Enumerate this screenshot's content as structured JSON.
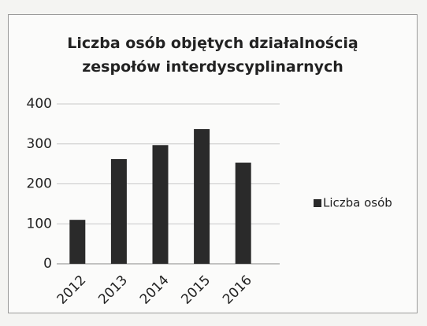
{
  "chart_data": {
    "type": "bar",
    "title": "Liczba osób objętych działalnością zespołów interdyscyplinarnych",
    "categories": [
      "2012",
      "2013",
      "2014",
      "2015",
      "2016"
    ],
    "series": [
      {
        "name": "Liczba osób",
        "color": "#2a2a2a",
        "values": [
          110,
          262,
          297,
          337,
          253
        ]
      }
    ],
    "ylim": [
      0,
      400
    ],
    "yticks": [
      0,
      100,
      200,
      300,
      400
    ],
    "grid": true,
    "legend": "right"
  }
}
